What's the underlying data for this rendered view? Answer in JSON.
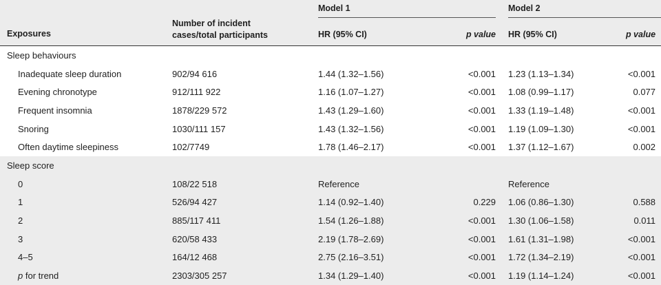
{
  "header": {
    "exposures": "Exposures",
    "cases": "Number of incident cases/total participants",
    "model1": "Model 1",
    "model2": "Model 2",
    "hr": "HR (95% CI)",
    "pvalue": "p value"
  },
  "sections": [
    {
      "title": "Sleep behaviours",
      "rows": [
        {
          "label": "Inadequate sleep duration",
          "cases": "902/94 616",
          "hr1": "1.44 (1.32–1.56)",
          "p1": "<0.001",
          "hr2": "1.23 (1.13–1.34)",
          "p2": "<0.001"
        },
        {
          "label": "Evening chronotype",
          "cases": "912/111 922",
          "hr1": "1.16 (1.07–1.27)",
          "p1": "<0.001",
          "hr2": "1.08 (0.99–1.17)",
          "p2": "0.077"
        },
        {
          "label": "Frequent insomnia",
          "cases": "1878/229 572",
          "hr1": "1.43 (1.29–1.60)",
          "p1": "<0.001",
          "hr2": "1.33 (1.19–1.48)",
          "p2": "<0.001"
        },
        {
          "label": "Snoring",
          "cases": "1030/111 157",
          "hr1": "1.43 (1.32–1.56)",
          "p1": "<0.001",
          "hr2": "1.19 (1.09–1.30)",
          "p2": "<0.001"
        },
        {
          "label": "Often daytime sleepiness",
          "cases": "102/7749",
          "hr1": "1.78 (1.46–2.17)",
          "p1": "<0.001",
          "hr2": "1.37 (1.12–1.67)",
          "p2": "0.002"
        }
      ]
    },
    {
      "title": "Sleep score",
      "rows": [
        {
          "label": "0",
          "cases": "108/22 518",
          "hr1": "Reference",
          "p1": "",
          "hr2": "Reference",
          "p2": ""
        },
        {
          "label": "1",
          "cases": "526/94 427",
          "hr1": "1.14 (0.92–1.40)",
          "p1": "0.229",
          "hr2": "1.06 (0.86–1.30)",
          "p2": "0.588"
        },
        {
          "label": "2",
          "cases": "885/117 411",
          "hr1": "1.54 (1.26–1.88)",
          "p1": "<0.001",
          "hr2": "1.30 (1.06–1.58)",
          "p2": "0.011"
        },
        {
          "label": "3",
          "cases": "620/58 433",
          "hr1": "2.19 (1.78–2.69)",
          "p1": "<0.001",
          "hr2": "1.61 (1.31–1.98)",
          "p2": "<0.001"
        },
        {
          "label": "4–5",
          "cases": "164/12 468",
          "hr1": "2.75 (2.16–3.51)",
          "p1": "<0.001",
          "hr2": "1.72 (1.34–2.19)",
          "p2": "<0.001"
        },
        {
          "label_prefix": "p",
          "label": " for trend",
          "cases": "2303/305 257",
          "hr1": "1.34 (1.29–1.40)",
          "p1": "<0.001",
          "hr2": "1.19 (1.14–1.24)",
          "p2": "<0.001"
        }
      ]
    }
  ]
}
